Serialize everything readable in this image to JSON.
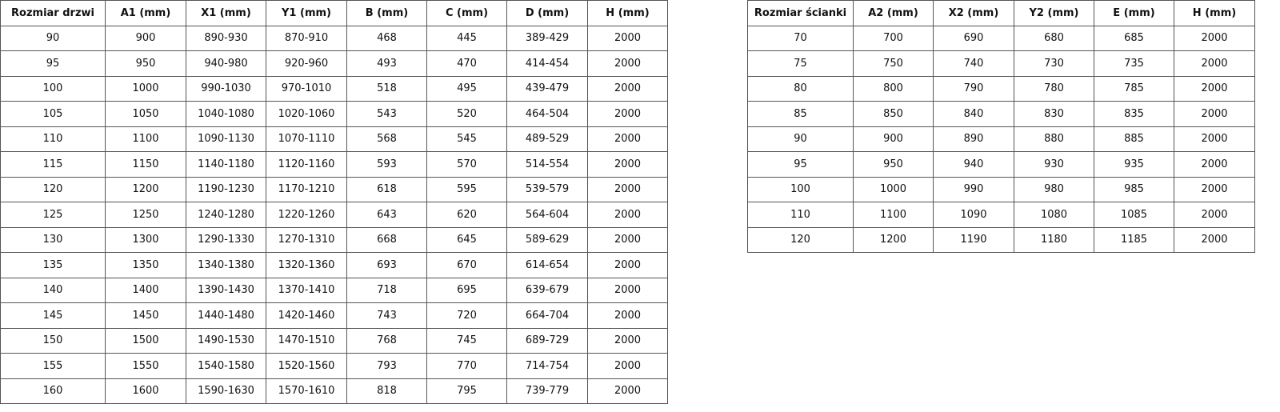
{
  "doors_table": {
    "headers": [
      "Rozmiar drzwi",
      "A1 (mm)",
      "X1 (mm)",
      "Y1 (mm)",
      "B (mm)",
      "C (mm)",
      "D (mm)",
      "H (mm)"
    ],
    "rows": [
      [
        "90",
        "900",
        "890-930",
        "870-910",
        "468",
        "445",
        "389-429",
        "2000"
      ],
      [
        "95",
        "950",
        "940-980",
        "920-960",
        "493",
        "470",
        "414-454",
        "2000"
      ],
      [
        "100",
        "1000",
        "990-1030",
        "970-1010",
        "518",
        "495",
        "439-479",
        "2000"
      ],
      [
        "105",
        "1050",
        "1040-1080",
        "1020-1060",
        "543",
        "520",
        "464-504",
        "2000"
      ],
      [
        "110",
        "1100",
        "1090-1130",
        "1070-1110",
        "568",
        "545",
        "489-529",
        "2000"
      ],
      [
        "115",
        "1150",
        "1140-1180",
        "1120-1160",
        "593",
        "570",
        "514-554",
        "2000"
      ],
      [
        "120",
        "1200",
        "1190-1230",
        "1170-1210",
        "618",
        "595",
        "539-579",
        "2000"
      ],
      [
        "125",
        "1250",
        "1240-1280",
        "1220-1260",
        "643",
        "620",
        "564-604",
        "2000"
      ],
      [
        "130",
        "1300",
        "1290-1330",
        "1270-1310",
        "668",
        "645",
        "589-629",
        "2000"
      ],
      [
        "135",
        "1350",
        "1340-1380",
        "1320-1360",
        "693",
        "670",
        "614-654",
        "2000"
      ],
      [
        "140",
        "1400",
        "1390-1430",
        "1370-1410",
        "718",
        "695",
        "639-679",
        "2000"
      ],
      [
        "145",
        "1450",
        "1440-1480",
        "1420-1460",
        "743",
        "720",
        "664-704",
        "2000"
      ],
      [
        "150",
        "1500",
        "1490-1530",
        "1470-1510",
        "768",
        "745",
        "689-729",
        "2000"
      ],
      [
        "155",
        "1550",
        "1540-1580",
        "1520-1560",
        "793",
        "770",
        "714-754",
        "2000"
      ],
      [
        "160",
        "1600",
        "1590-1630",
        "1570-1610",
        "818",
        "795",
        "739-779",
        "2000"
      ]
    ]
  },
  "walls_table": {
    "headers": [
      "Rozmiar ścianki",
      "A2 (mm)",
      "X2 (mm)",
      "Y2 (mm)",
      "E (mm)",
      "H (mm)"
    ],
    "rows": [
      [
        "70",
        "700",
        "690",
        "680",
        "685",
        "2000"
      ],
      [
        "75",
        "750",
        "740",
        "730",
        "735",
        "2000"
      ],
      [
        "80",
        "800",
        "790",
        "780",
        "785",
        "2000"
      ],
      [
        "85",
        "850",
        "840",
        "830",
        "835",
        "2000"
      ],
      [
        "90",
        "900",
        "890",
        "880",
        "885",
        "2000"
      ],
      [
        "95",
        "950",
        "940",
        "930",
        "935",
        "2000"
      ],
      [
        "100",
        "1000",
        "990",
        "980",
        "985",
        "2000"
      ],
      [
        "110",
        "1100",
        "1090",
        "1080",
        "1085",
        "2000"
      ],
      [
        "120",
        "1200",
        "1190",
        "1180",
        "1185",
        "2000"
      ]
    ]
  }
}
